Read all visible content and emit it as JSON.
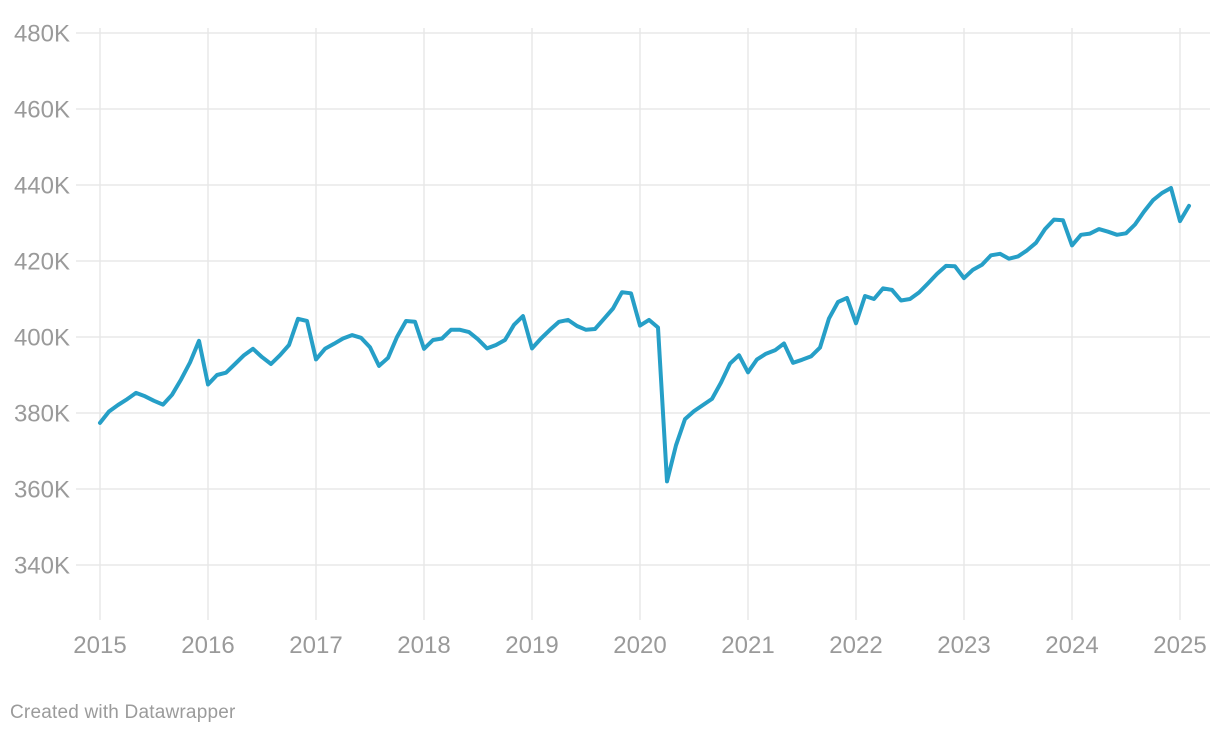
{
  "footer": {
    "credit": "Created with Datawrapper"
  },
  "chart_data": {
    "type": "line",
    "title": "",
    "x_range": [
      "2015-01",
      "2025-02"
    ],
    "x_tick_years": [
      2015,
      2016,
      2017,
      2018,
      2019,
      2020,
      2021,
      2022,
      2023,
      2024,
      2025
    ],
    "y_ticks": [
      340,
      360,
      380,
      400,
      420,
      440,
      460,
      480
    ],
    "y_tick_suffix": "K",
    "ylim": [
      340,
      480
    ],
    "grid": true,
    "legend_position": "none",
    "series": [
      {
        "name": "series-1",
        "frequency": "monthly",
        "values": [
          377.4,
          380.4,
          382.1,
          383.6,
          385.3,
          384.4,
          383.2,
          382.2,
          384.8,
          388.8,
          393.3,
          399.0,
          387.5,
          390.0,
          390.6,
          392.9,
          395.2,
          396.9,
          394.7,
          392.9,
          395.2,
          397.9,
          404.8,
          404.2,
          394.1,
          396.9,
          398.2,
          399.6,
          400.5,
          399.8,
          397.3,
          392.4,
          394.5,
          400.0,
          404.2,
          404.0,
          396.9,
          399.2,
          399.6,
          401.9,
          401.9,
          401.3,
          399.4,
          397.0,
          397.9,
          399.2,
          403.2,
          405.5,
          397.0,
          399.6,
          401.9,
          404.0,
          404.5,
          402.9,
          401.9,
          402.1,
          404.8,
          407.5,
          411.8,
          411.5,
          403.0,
          404.5,
          402.5,
          362.0,
          371.5,
          378.4,
          380.5,
          382.1,
          383.7,
          388.0,
          393.0,
          395.2,
          390.7,
          394.1,
          395.6,
          396.5,
          398.3,
          393.2,
          394.0,
          394.9,
          397.2,
          404.9,
          409.2,
          410.3,
          403.6,
          410.8,
          410.0,
          412.8,
          412.4,
          409.6,
          410.0,
          411.7,
          414.1,
          416.6,
          418.7,
          418.6,
          415.5,
          417.7,
          419.0,
          421.5,
          421.9,
          420.6,
          421.2,
          422.8,
          424.8,
          428.4,
          430.9,
          430.7,
          424.1,
          426.9,
          427.2,
          428.4,
          427.7,
          426.9,
          427.3,
          429.6,
          433.0,
          436.0,
          437.9,
          439.2,
          430.5,
          434.5
        ]
      }
    ],
    "colors": {
      "line": "#269fc7",
      "grid": "#e8e8e8",
      "axis_label": "#9a9a9a",
      "credit": "#9b9b9b",
      "background": "#ffffff"
    }
  }
}
